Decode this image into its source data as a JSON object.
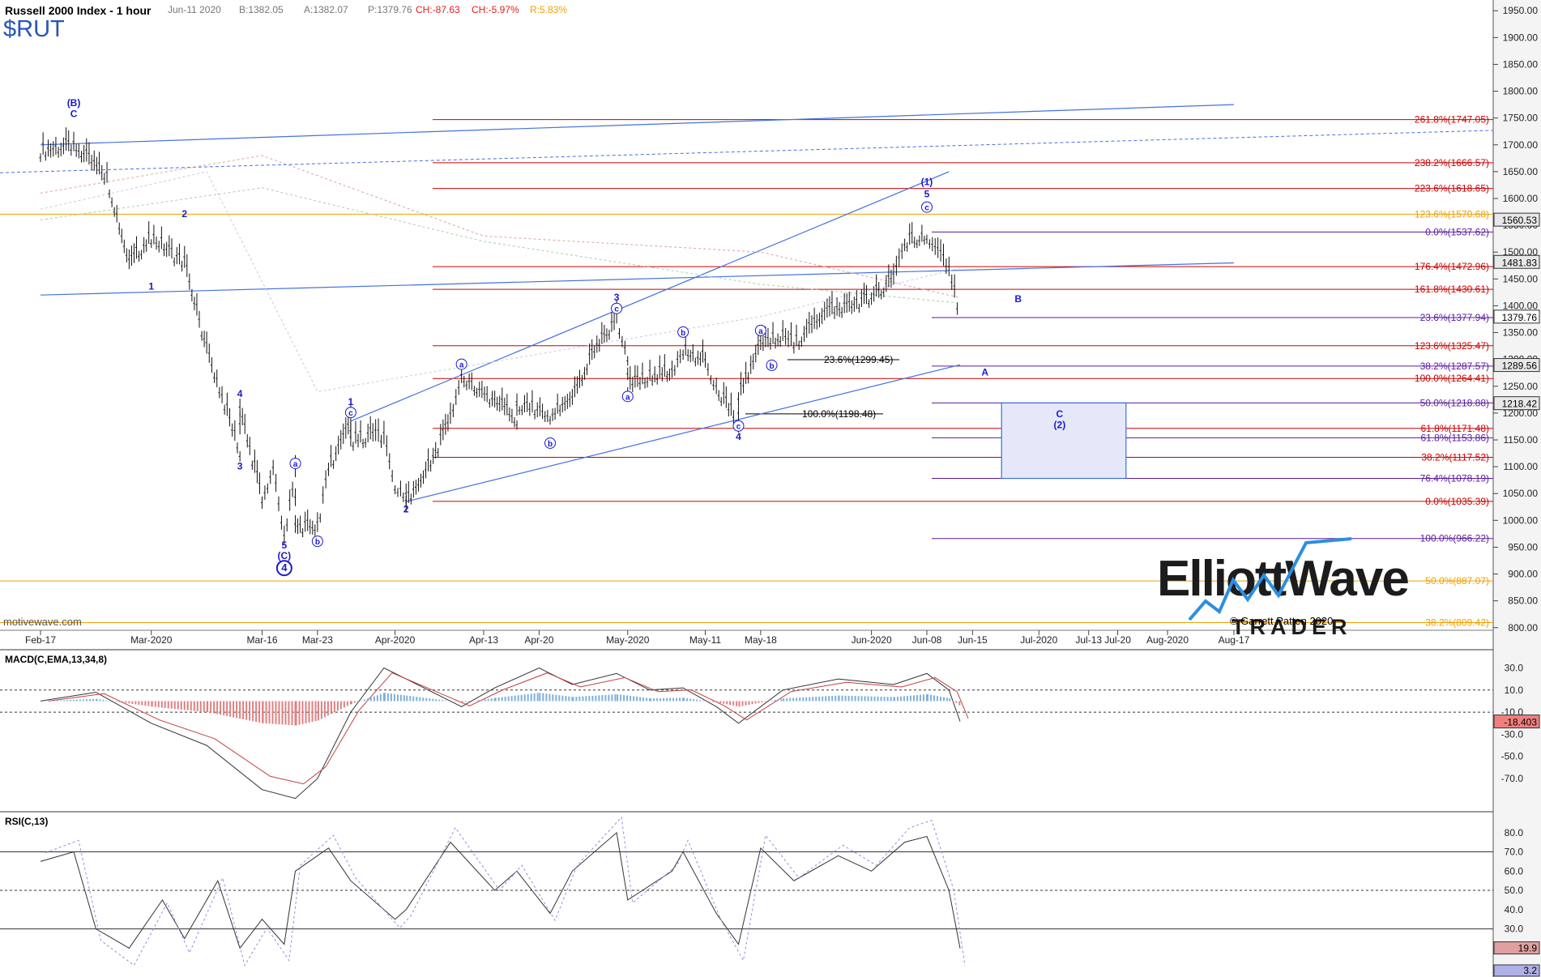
{
  "header": {
    "title": "Russell 2000 Index - 1 hour",
    "symbol": "$RUT",
    "quote": {
      "date": "Jun-11 2020",
      "bid": "B:1382.05",
      "ask": "A:1382.07",
      "price": "P:1379.76",
      "change": "CH:-87.63",
      "change_pct": "CH:-5.97%",
      "range": "R:5.83%"
    }
  },
  "source": "motivewave.com",
  "logo": {
    "line1": "ElliottWave",
    "line2": "TRADER",
    "copyright": "© Garrett Patten 2020"
  },
  "colors": {
    "wave_blue": "#1a1acd",
    "trendline_blue": "#4472e0",
    "fib_red": "#cc0000",
    "fib_orange": "#f0a000",
    "fib_purple": "#5a1aa0",
    "price_bar": "#111111",
    "target_box_fill": "#e6e8fa",
    "target_box_stroke": "#3a6fd8",
    "macd_pos": "#7fb0dc",
    "macd_neg": "#e08080",
    "rsi_fill_high": "#bcbce0",
    "rsi_fill_low": "#d8a8a8"
  },
  "chart_data": [
    {
      "name": "price",
      "type": "ohlc",
      "ylim": [
        780,
        1970
      ],
      "y_ticks": [
        800,
        850,
        900,
        950,
        1000,
        1050,
        1100,
        1150,
        1200,
        1250,
        1300,
        1350,
        1400,
        1450,
        1500,
        1550,
        1600,
        1650,
        1700,
        1750,
        1800,
        1850,
        1900,
        1950
      ],
      "x_ticks": [
        "Feb-17",
        "Mar-2020",
        "Mar-16",
        "Mar-23",
        "Apr-2020",
        "Apr-13",
        "Apr-20",
        "May-2020",
        "May-11",
        "May-18",
        "Jun-2020",
        "Jun-08",
        "Jun-15",
        "Jul-2020",
        "Jul-13",
        "Jul-20",
        "Aug-2020",
        "Aug-17"
      ],
      "close_series": [
        [
          "Feb-17",
          1690
        ],
        [
          "Feb-21",
          1700
        ],
        [
          "Feb-25",
          1640
        ],
        [
          "Feb-28",
          1480
        ],
        [
          "Mar-02",
          1530
        ],
        [
          "Mar-05",
          1480
        ],
        [
          "Mar-09",
          1320
        ],
        [
          "Mar-12",
          1130
        ],
        [
          "Mar-13",
          1210
        ],
        [
          "Mar-16",
          1040
        ],
        [
          "Mar-17",
          1100
        ],
        [
          "Mar-18",
          966
        ],
        [
          "Mar-19",
          1090
        ],
        [
          "Mar-20",
          990
        ],
        [
          "Mar-23",
          990
        ],
        [
          "Mar-24",
          1100
        ],
        [
          "Mar-26",
          1180
        ],
        [
          "Mar-27",
          1150
        ],
        [
          "Mar-30",
          1160
        ],
        [
          "Mar-31",
          1150
        ],
        [
          "Apr-01",
          1070
        ],
        [
          "Apr-02",
          1050
        ],
        [
          "Apr-03",
          1035
        ],
        [
          "Apr-06",
          1100
        ],
        [
          "Apr-08",
          1190
        ],
        [
          "Apr-09",
          1270
        ],
        [
          "Apr-14",
          1225
        ],
        [
          "Apr-16",
          1190
        ],
        [
          "Apr-17",
          1220
        ],
        [
          "Apr-21",
          1200
        ],
        [
          "Apr-23",
          1230
        ],
        [
          "Apr-27",
          1320
        ],
        [
          "Apr-29",
          1375
        ],
        [
          "Apr-30",
          1310
        ],
        [
          "May-01",
          1250
        ],
        [
          "May-04",
          1270
        ],
        [
          "May-06",
          1280
        ],
        [
          "May-08",
          1320
        ],
        [
          "May-11",
          1300
        ],
        [
          "May-12",
          1250
        ],
        [
          "May-14",
          1180
        ],
        [
          "May-15",
          1230
        ],
        [
          "May-18",
          1330
        ],
        [
          "May-20",
          1345
        ],
        [
          "May-22",
          1330
        ],
        [
          "May-26",
          1390
        ],
        [
          "May-28",
          1400
        ],
        [
          "Jun-01",
          1420
        ],
        [
          "Jun-03",
          1450
        ],
        [
          "Jun-05",
          1520
        ],
        [
          "Jun-08",
          1537
        ],
        [
          "Jun-09",
          1500
        ],
        [
          "Jun-10",
          1467
        ],
        [
          "Jun-11",
          1379.76
        ]
      ],
      "last_price": "1379.76",
      "price_markers": [
        "1560.53",
        "1481.83",
        "1379.76",
        "1289.56",
        "1218.42"
      ],
      "wave_labels": [
        {
          "text": "(B)",
          "date": "Feb-20",
          "price": 1772
        },
        {
          "text": "C",
          "date": "Feb-20",
          "price": 1752
        },
        {
          "text": "2",
          "date": "Mar-05",
          "price": 1565
        },
        {
          "text": "1",
          "date": "Mar-02",
          "price": 1430
        },
        {
          "text": "4",
          "date": "Mar-13",
          "price": 1230
        },
        {
          "text": "3",
          "date": "Mar-12",
          "price": 1095
        },
        {
          "text": "5",
          "date": "Mar-18",
          "price": 948
        },
        {
          "text": "(C)",
          "date": "Mar-18",
          "price": 928
        },
        {
          "text": "4",
          "date": "Mar-18",
          "price": 905,
          "style": "circled"
        },
        {
          "text": "a",
          "date": "Mar-19",
          "price": 1100,
          "style": "circled"
        },
        {
          "text": "b",
          "date": "Mar-23",
          "price": 955,
          "style": "circled"
        },
        {
          "text": "1",
          "date": "Mar-26",
          "price": 1215
        },
        {
          "text": "c",
          "date": "Mar-26",
          "price": 1195,
          "style": "circled"
        },
        {
          "text": "2",
          "date": "Apr-03",
          "price": 1015
        },
        {
          "text": "a",
          "date": "Apr-09",
          "price": 1285,
          "style": "circled"
        },
        {
          "text": "b",
          "date": "Apr-21",
          "price": 1138,
          "style": "circled"
        },
        {
          "text": "3",
          "date": "Apr-29",
          "price": 1410
        },
        {
          "text": "c",
          "date": "Apr-29",
          "price": 1389,
          "style": "circled"
        },
        {
          "text": "a",
          "date": "May-01",
          "price": 1225,
          "style": "circled"
        },
        {
          "text": "b",
          "date": "May-08",
          "price": 1345,
          "style": "circled"
        },
        {
          "text": "c",
          "date": "May-14",
          "price": 1170,
          "style": "circled"
        },
        {
          "text": "4",
          "date": "May-14",
          "price": 1150
        },
        {
          "text": "a",
          "date": "May-18",
          "price": 1348,
          "style": "circled"
        },
        {
          "text": "b",
          "date": "May-19",
          "price": 1283,
          "style": "circled"
        },
        {
          "text": "(1)",
          "date": "Jun-08",
          "price": 1625
        },
        {
          "text": "5",
          "date": "Jun-08",
          "price": 1602
        },
        {
          "text": "c",
          "date": "Jun-08",
          "price": 1578,
          "style": "circled"
        },
        {
          "text": "B",
          "date": "Jun-26",
          "price": 1407
        },
        {
          "text": "A",
          "date": "Jun-18",
          "price": 1270
        },
        {
          "text": "C",
          "date": "Jul-06",
          "price": 1192
        },
        {
          "text": "(2)",
          "date": "Jul-06",
          "price": 1172
        }
      ],
      "fib_levels": [
        {
          "label": "261.8%(1747.05)",
          "price": 1747.05,
          "color": "red"
        },
        {
          "label": "238.2%(1666.57)",
          "price": 1666.57,
          "color": "red"
        },
        {
          "label": "223.6%(1618.65)",
          "price": 1618.65,
          "color": "red"
        },
        {
          "label": "0.0%(1537.62)",
          "price": 1537.62,
          "color": "purple"
        },
        {
          "label": "176.4%(1472.96)",
          "price": 1472.96,
          "color": "red"
        },
        {
          "label": "161.8%(1430.61)",
          "price": 1430.61,
          "color": "red"
        },
        {
          "label": "23.6%(1377.94)",
          "price": 1377.94,
          "color": "purple"
        },
        {
          "label": "123.6%(1325.47)",
          "price": 1325.47,
          "color": "red"
        },
        {
          "label": "38.2%(1287.57)",
          "price": 1287.57,
          "color": "purple"
        },
        {
          "label": "100.0%(1264.41)",
          "price": 1264.41,
          "color": "red"
        },
        {
          "label": "50.0%(1218.88)",
          "price": 1218.88,
          "color": "purple"
        },
        {
          "label": "61.8%(1171.48)",
          "price": 1171.48,
          "color": "red"
        },
        {
          "label": "61.8%(1153.86)",
          "price": 1153.86,
          "color": "purple"
        },
        {
          "label": "38.2%(1117.52)",
          "price": 1117.52,
          "color": "red"
        },
        {
          "label": "76.4%(1078.19)",
          "price": 1078.19,
          "color": "purple"
        },
        {
          "label": "0.0%(1035.39)",
          "price": 1035.39,
          "color": "red"
        },
        {
          "label": "100.0%(966.22)",
          "price": 966.22,
          "color": "purple"
        },
        {
          "label": "123.6%(1570.68)",
          "price": 1570.68,
          "color": "orange"
        },
        {
          "label": "50.0%(887.07)",
          "price": 887.07,
          "color": "orange"
        },
        {
          "label": "38.2%(809.42)",
          "price": 809.42,
          "color": "orange"
        }
      ],
      "inline_fib_labels": [
        {
          "label": "23.6%(1299.45)",
          "price": 1299.45
        },
        {
          "label": "100.0%(1198.48)",
          "price": 1198.48
        }
      ],
      "target_box": {
        "label": "C (2)",
        "price_top": 1218.88,
        "price_bottom": 1078.19,
        "date_start": "Jun-22",
        "date_end": "Jul-22"
      }
    },
    {
      "name": "MACD",
      "title": "MACD(C,EMA,13,34,8)",
      "type": "line",
      "ylim": [
        -100,
        45
      ],
      "y_ticks": [
        "30.0",
        "10.0",
        "-10.0",
        "-30.0",
        "-50.0",
        "-70.0"
      ],
      "last_value": "-18.403"
    },
    {
      "name": "RSI",
      "title": "RSI(C,13)",
      "type": "line",
      "ylim": [
        5,
        90
      ],
      "y_ticks": [
        "80.0",
        "70.0",
        "60.0",
        "50.0",
        "40.0",
        "30.0",
        "20.0"
      ],
      "last_value": "19.9",
      "secondary_value": "3.2"
    }
  ]
}
